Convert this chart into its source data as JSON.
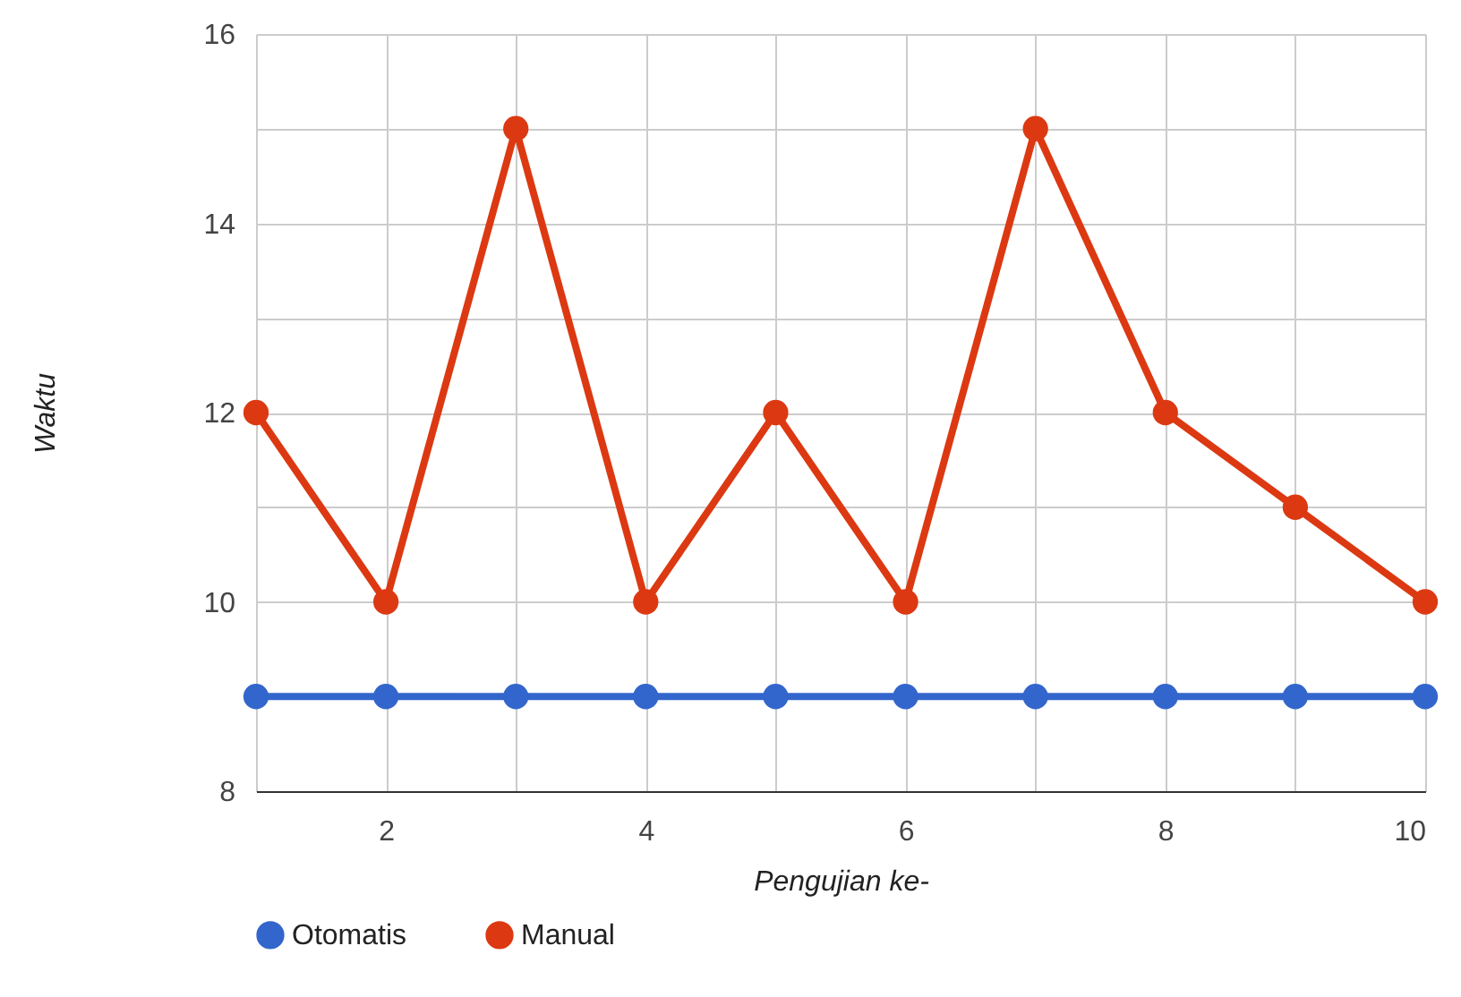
{
  "chart_data": {
    "type": "line",
    "xlabel": "Pengujian ke-",
    "ylabel": "Waktu",
    "x": [
      1,
      2,
      3,
      4,
      5,
      6,
      7,
      8,
      9,
      10
    ],
    "series": [
      {
        "name": "Otomatis",
        "color": "#3366cc",
        "values": [
          9,
          9,
          9,
          9,
          9,
          9,
          9,
          9,
          9,
          9
        ]
      },
      {
        "name": "Manual",
        "color": "#dc3912",
        "values": [
          12,
          10,
          15,
          10,
          12,
          10,
          15,
          12,
          11,
          10
        ]
      }
    ],
    "xlim": [
      1,
      10
    ],
    "xticks": [
      {
        "value": 1,
        "label": null
      },
      2,
      {
        "value": 3,
        "label": null
      },
      4,
      {
        "value": 5,
        "label": null
      },
      6,
      {
        "value": 7,
        "label": null
      },
      8,
      {
        "value": 9,
        "label": null
      },
      10
    ],
    "ylim": [
      8,
      16
    ],
    "yticks": [
      8,
      10,
      {
        "value": 11,
        "label": null
      },
      12,
      {
        "value": 13,
        "label": null
      },
      14,
      {
        "value": 15,
        "label": null
      },
      16
    ],
    "grid": true,
    "legend": "bottom",
    "marker": "circle",
    "line_style": "solid"
  }
}
